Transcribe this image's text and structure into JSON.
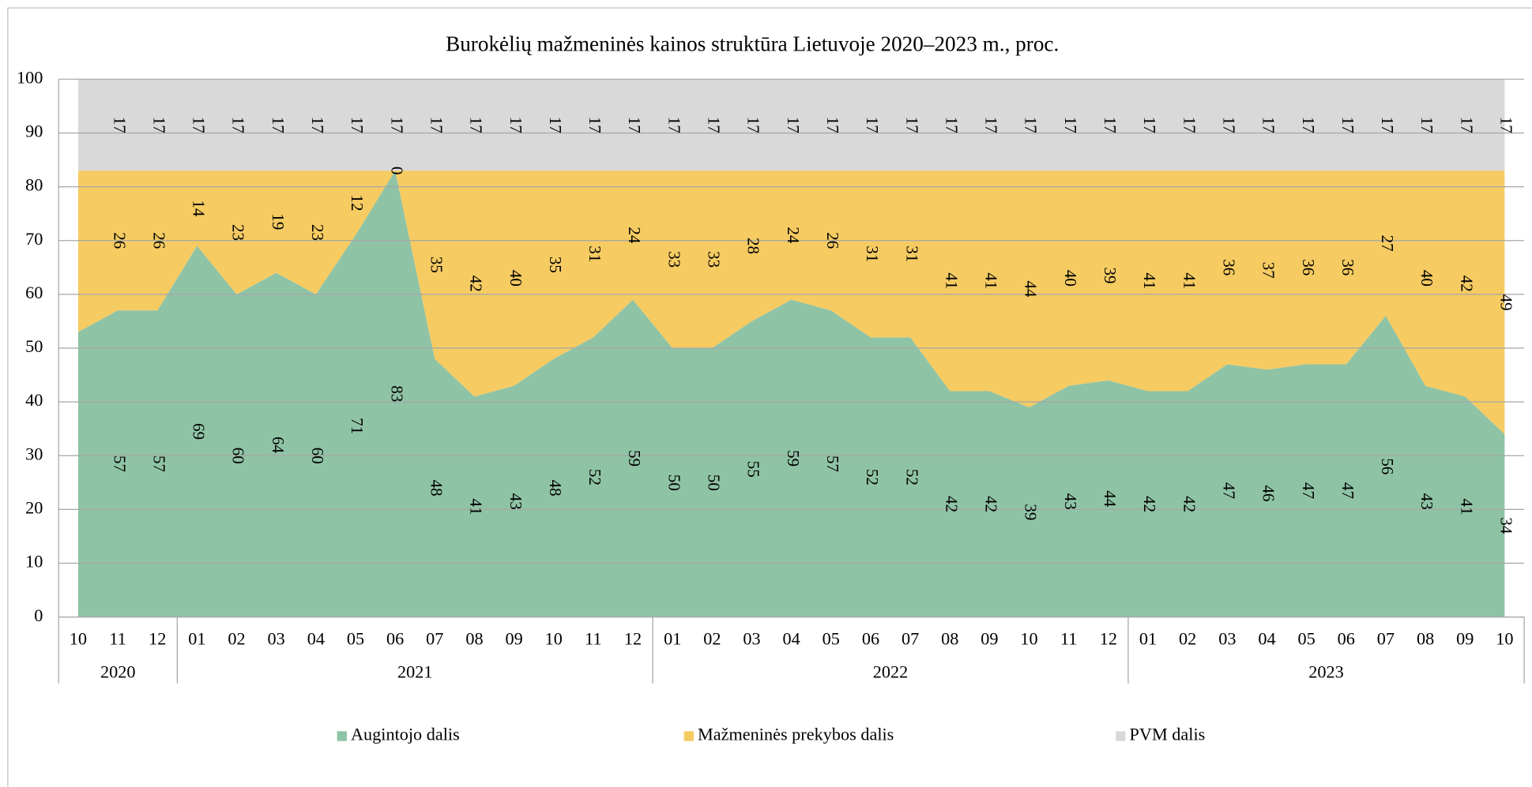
{
  "chart_data": {
    "type": "stacked_area",
    "title": "Burokėlių mažmeninės kainos struktūra Lietuvoje 2020–2023 m., proc.",
    "categories": [
      "10",
      "11",
      "12",
      "01",
      "02",
      "03",
      "04",
      "05",
      "06",
      "07",
      "08",
      "09",
      "10",
      "11",
      "12",
      "01",
      "02",
      "03",
      "04",
      "05",
      "06",
      "07",
      "08",
      "09",
      "10",
      "11",
      "12",
      "01",
      "02",
      "03",
      "04",
      "05",
      "06",
      "07",
      "08",
      "09",
      "10"
    ],
    "years": [
      "2020",
      "2021",
      "2022",
      "2023"
    ],
    "series": [
      {
        "name": "Augintojo dalis",
        "color": "#8fc3a6",
        "values": [
          53,
          57,
          57,
          69,
          60,
          64,
          60,
          71,
          83,
          48,
          41,
          43,
          48,
          52,
          59,
          50,
          50,
          55,
          59,
          57,
          52,
          52,
          42,
          42,
          39,
          43,
          44,
          42,
          42,
          47,
          46,
          47,
          47,
          56,
          43,
          41,
          34
        ],
        "value_labels": [
          null,
          "57",
          "57",
          "69",
          "60",
          "64",
          "60",
          "71",
          "83",
          "48",
          "41",
          "43",
          "48",
          "52",
          "59",
          "50",
          "50",
          "55",
          "59",
          "57",
          "52",
          "52",
          "42",
          "42",
          "39",
          "43",
          "44",
          "42",
          "42",
          "47",
          "46",
          "47",
          "47",
          "56",
          "43",
          "41",
          "34"
        ]
      },
      {
        "name": "Mažmeninės prekybos dalis",
        "color": "#f5cb62",
        "values": [
          30,
          26,
          26,
          14,
          23,
          19,
          23,
          12,
          0,
          35,
          42,
          40,
          35,
          31,
          24,
          33,
          33,
          28,
          24,
          26,
          31,
          31,
          41,
          41,
          44,
          40,
          39,
          41,
          41,
          36,
          37,
          36,
          36,
          27,
          40,
          42,
          49
        ],
        "value_labels": [
          null,
          "26",
          "26",
          "14",
          "23",
          "19",
          "23",
          "12",
          "0",
          "35",
          "42",
          "40",
          "35",
          "31",
          "24",
          "33",
          "33",
          "28",
          "24",
          "26",
          "31",
          "31",
          "41",
          "41",
          "44",
          "40",
          "39",
          "41",
          "41",
          "36",
          "37",
          "36",
          "36",
          "27",
          "40",
          "42",
          "49"
        ]
      },
      {
        "name": "PVM dalis",
        "color": "#d9d9d9",
        "values": [
          17,
          17,
          17,
          17,
          17,
          17,
          17,
          17,
          17,
          17,
          17,
          17,
          17,
          17,
          17,
          17,
          17,
          17,
          17,
          17,
          17,
          17,
          17,
          17,
          17,
          17,
          17,
          17,
          17,
          17,
          17,
          17,
          17,
          17,
          17,
          17,
          17
        ],
        "value_labels": [
          null,
          "17",
          "17",
          "17",
          "17",
          "17",
          "17",
          "17",
          "17",
          "17",
          "17",
          "17",
          "17",
          "17",
          "17",
          "17",
          "17",
          "17",
          "17",
          "17",
          "17",
          "17",
          "17",
          "17",
          "17",
          "17",
          "17",
          "17",
          "17",
          "17",
          "17",
          "17",
          "17",
          "17",
          "17",
          "17",
          "17"
        ]
      }
    ],
    "ylim": [
      0,
      100
    ],
    "yticks": [
      0,
      10,
      20,
      30,
      40,
      50,
      60,
      70,
      80,
      90,
      100
    ],
    "grid": true,
    "legend": "bottom"
  }
}
